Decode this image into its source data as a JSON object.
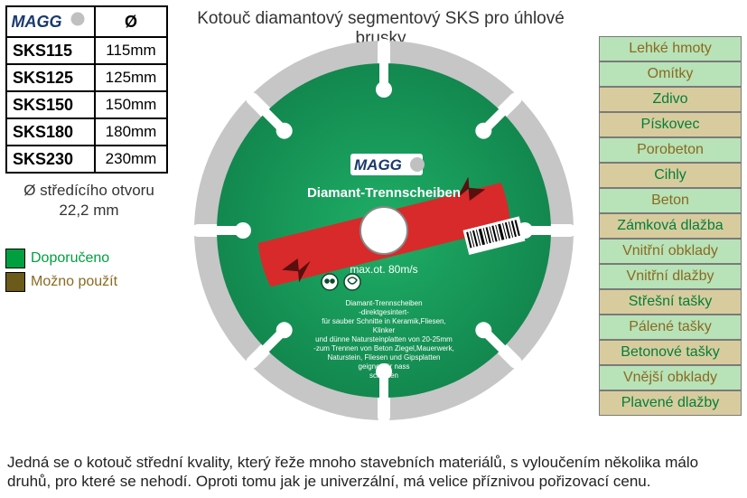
{
  "brand_logo_text": "MAGG",
  "diameter_symbol": "Ø",
  "title": "Kotouč diamantový  segmentový SKS pro úhlové brusky",
  "specs": [
    {
      "code": "SKS115",
      "size": "115mm"
    },
    {
      "code": "SKS125",
      "size": "125mm"
    },
    {
      "code": "SKS150",
      "size": "150mm"
    },
    {
      "code": "SKS180",
      "size": "180mm"
    },
    {
      "code": "SKS230",
      "size": "230mm"
    }
  ],
  "bore_line1": "Ø středícího otvoru",
  "bore_line2": "22,2 mm",
  "legend": {
    "recommended": "Doporučeno",
    "possible": "Možno použít"
  },
  "materials": [
    {
      "label": "Lehké hmoty",
      "class": "green"
    },
    {
      "label": "Omítky",
      "class": "green"
    },
    {
      "label": "Zdivo",
      "class": "olive"
    },
    {
      "label": "Pískovec",
      "class": "olive"
    },
    {
      "label": "Porobeton",
      "class": "green"
    },
    {
      "label": "Cihly",
      "class": "olive"
    },
    {
      "label": "Beton",
      "class": "green"
    },
    {
      "label": "Zámková dlažba",
      "class": "olive"
    },
    {
      "label": "Vnitřní obklady",
      "class": "green"
    },
    {
      "label": "Vnitřní dlažby",
      "class": "green"
    },
    {
      "label": "Střešní tašky",
      "class": "olive"
    },
    {
      "label": "Pálené tašky",
      "class": "green"
    },
    {
      "label": "Betonové tašky",
      "class": "olive"
    },
    {
      "label": "Vnější obklady",
      "class": "green"
    },
    {
      "label": "Plavené dlažby",
      "class": "olive"
    }
  ],
  "disc": {
    "outer_color": "#c6c6c6",
    "segment_gap_color": "#ffffff",
    "face_color": "#169d5a",
    "face_color_dark": "#0f7a45",
    "band_color": "#d82a2a",
    "bore_color": "#ffffff",
    "bore_ring": "#888888",
    "label_title": "Diamant-Trennscheiben",
    "label_speed": "max.ot. 80m/s",
    "small_text1": "Diamant-Trennscheiben",
    "small_text2": "-direktgesintert-",
    "small_text3": "für sauber Schnitte in Keramik,Fliesen,",
    "small_text4": "Klinker",
    "small_text5": "und dünne Natursteinplatten von 20-25mm",
    "small_text6": "-zum Trennen von Beton Ziegel,Mauerwerk,",
    "small_text7": "Naturstein, Fliesen und Gipsplatten",
    "small_text8": "geignet für nass",
    "small_text9": "schnitten",
    "brand_on_disc": "MAGG"
  },
  "description": "Jedná se o kotouč střední kvality, který řeže mnoho stavebních materiálů, s vyloučením několika málo druhů, pro které se nehodí. Oproti tomu jak je univerzální, má velice příznivou pořizovací cenu.",
  "colors": {
    "green_swatch": "#00a040",
    "olive_swatch": "#6b5a1a",
    "mat_green_bg": "#b8e2b8",
    "mat_olive_bg": "#d8cc9e"
  },
  "spec_row_top_start": 42,
  "spec_row_height": 30
}
